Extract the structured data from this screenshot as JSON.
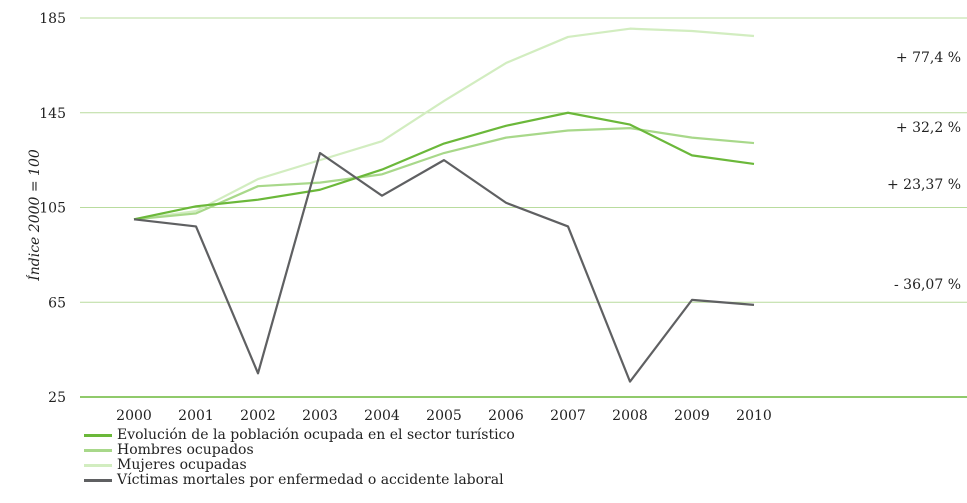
{
  "chart_data": {
    "type": "line",
    "title": "",
    "ylabel": "Índice 2000 = 100",
    "xlabel": "",
    "x": [
      "2000",
      "2001",
      "2002",
      "2003",
      "2004",
      "2005",
      "2006",
      "2007",
      "2008",
      "2009",
      "2010"
    ],
    "y_ticks": [
      "185",
      "145",
      "105",
      "65",
      "25"
    ],
    "y_tick_values": [
      185,
      145,
      105,
      65,
      25
    ],
    "ylim": [
      25,
      185
    ],
    "grid": "horizontal",
    "legend_placement": "bottom-left",
    "series": [
      {
        "name": "Evolución de la población ocupada en el sector turístico",
        "color": "#6bb83a",
        "values": [
          100,
          105.5,
          108.3,
          112.5,
          121,
          132,
          139.5,
          145,
          140,
          127,
          123.4
        ],
        "end_label": "+ 23,37 %"
      },
      {
        "name": "Hombres ocupados",
        "color": "#a8d88a",
        "values": [
          100,
          102.5,
          114,
          115.5,
          119,
          128,
          134.5,
          137.5,
          138.5,
          134.5,
          132.2
        ],
        "end_label": "+ 32,2 %"
      },
      {
        "name": "Mujeres ocupadas",
        "color": "#d2edc0",
        "values": [
          100,
          103.5,
          117,
          125,
          133,
          150,
          166,
          177,
          180.5,
          179.5,
          177.4
        ],
        "end_label": "+ 77,4 %"
      },
      {
        "name": "Víctimas mortales por enfermedad o accidente laboral",
        "color": "#5f6062",
        "values": [
          100,
          97,
          35,
          128,
          110,
          125,
          107,
          97,
          31.5,
          66,
          63.9
        ],
        "end_label": "- 36,07 %"
      }
    ]
  }
}
